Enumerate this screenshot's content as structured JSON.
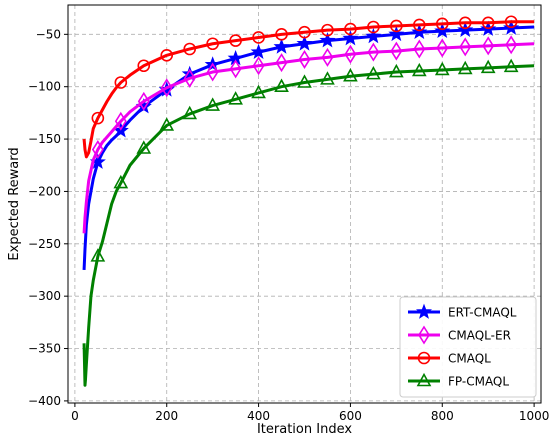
{
  "chart_data": {
    "type": "line",
    "xlabel": "Iteration Index",
    "ylabel": "Expected Reward",
    "xlim": [
      -15,
      1015
    ],
    "ylim": [
      -402,
      -22
    ],
    "xticks": [
      0,
      200,
      400,
      600,
      800,
      1000
    ],
    "yticks": [
      -50,
      -100,
      -150,
      -200,
      -250,
      -300,
      -350,
      -400
    ],
    "grid": true,
    "grid_style": "dashed",
    "legend_position": "lower-right",
    "series": [
      {
        "name": "ERT-CMAQL",
        "color": "#0000ff",
        "marker": "star",
        "x": [
          20,
          22,
          25,
          30,
          40,
          50,
          60,
          70,
          80,
          90,
          100,
          120,
          150,
          200,
          250,
          300,
          350,
          400,
          450,
          500,
          550,
          600,
          650,
          700,
          750,
          800,
          850,
          900,
          950,
          1000
        ],
        "y": [
          -275,
          -255,
          -232,
          -212,
          -188,
          -172,
          -163,
          -156,
          -151,
          -147,
          -142,
          -132,
          -119,
          -103,
          -88,
          -79,
          -73,
          -67,
          -62,
          -59,
          -56,
          -54,
          -52,
          -50,
          -48,
          -47,
          -46,
          -45,
          -44,
          -43
        ]
      },
      {
        "name": "CMAQL-ER",
        "color": "#ee00ee",
        "marker": "diamond",
        "x": [
          20,
          22,
          25,
          30,
          40,
          50,
          60,
          70,
          80,
          90,
          100,
          120,
          150,
          200,
          250,
          300,
          350,
          400,
          450,
          500,
          550,
          600,
          650,
          700,
          750,
          800,
          850,
          900,
          950,
          1000
        ],
        "y": [
          -240,
          -225,
          -210,
          -190,
          -170,
          -160,
          -153,
          -148,
          -143,
          -138,
          -133,
          -124,
          -114,
          -101,
          -92,
          -86,
          -83,
          -80,
          -77,
          -74,
          -72,
          -69,
          -67,
          -66,
          -64,
          -63,
          -62,
          -61,
          -60,
          -59
        ]
      },
      {
        "name": "CMAQL",
        "color": "#ff0000",
        "marker": "circle",
        "x": [
          20,
          22,
          25,
          30,
          35,
          40,
          50,
          60,
          70,
          80,
          90,
          100,
          120,
          150,
          200,
          250,
          300,
          350,
          400,
          450,
          500,
          550,
          600,
          650,
          700,
          750,
          800,
          850,
          900,
          950,
          1000
        ],
        "y": [
          -150,
          -160,
          -167,
          -163,
          -152,
          -140,
          -130,
          -122,
          -114,
          -107,
          -101,
          -96,
          -89,
          -80,
          -70,
          -64,
          -59,
          -56,
          -53,
          -50,
          -48,
          -46,
          -45,
          -43,
          -42,
          -41,
          -40,
          -39,
          -39,
          -38,
          -38
        ]
      },
      {
        "name": "FP-CMAQL",
        "color": "#008000",
        "marker": "triangle",
        "x": [
          20,
          21,
          22,
          23,
          25,
          30,
          35,
          40,
          50,
          60,
          70,
          80,
          90,
          100,
          120,
          150,
          200,
          250,
          300,
          350,
          400,
          450,
          500,
          550,
          600,
          650,
          700,
          750,
          800,
          850,
          900,
          950,
          1000
        ],
        "y": [
          -345,
          -365,
          -385,
          -380,
          -365,
          -330,
          -300,
          -285,
          -262,
          -248,
          -230,
          -212,
          -200,
          -192,
          -175,
          -159,
          -137,
          -126,
          -118,
          -112,
          -106,
          -100,
          -96,
          -93,
          -90,
          -88,
          -86,
          -85,
          -84,
          -83,
          -82,
          -81,
          -80
        ]
      }
    ]
  }
}
